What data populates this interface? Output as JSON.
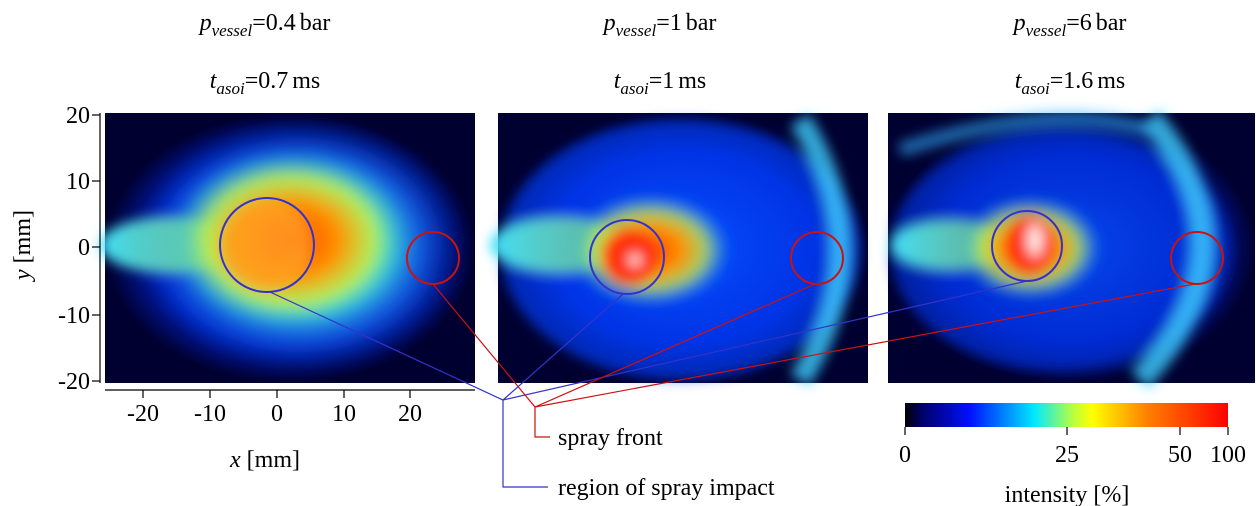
{
  "panels": [
    {
      "pressure": {
        "symbol": "p",
        "subscript": "vessel",
        "operator": "=",
        "value": "0.4",
        "unit": "bar"
      },
      "time": {
        "symbol": "t",
        "subscript": "asoi",
        "operator": "=",
        "value": "0.7",
        "unit": "ms"
      }
    },
    {
      "pressure": {
        "symbol": "p",
        "subscript": "vessel",
        "operator": "=",
        "value": "1",
        "unit": "bar"
      },
      "time": {
        "symbol": "t",
        "subscript": "asoi",
        "operator": "=",
        "value": "1",
        "unit": "ms"
      }
    },
    {
      "pressure": {
        "symbol": "p",
        "subscript": "vessel",
        "operator": "=",
        "value": "6",
        "unit": "bar"
      },
      "time": {
        "symbol": "t",
        "subscript": "asoi",
        "operator": "=",
        "value": "1.6",
        "unit": "ms"
      }
    }
  ],
  "y_axis": {
    "symbol": "y",
    "unit": "[mm]",
    "ticks": [
      20,
      10,
      0,
      -10,
      -20
    ]
  },
  "x_axis": {
    "symbol": "x",
    "unit": "[mm]",
    "ticks": [
      -20,
      -10,
      0,
      10,
      20
    ]
  },
  "annotations": {
    "spray_front": "spray front",
    "impact_region": "region of spray impact"
  },
  "colorbar": {
    "label": "intensity [%]",
    "ticks": [
      0,
      25,
      50,
      100
    ]
  }
}
